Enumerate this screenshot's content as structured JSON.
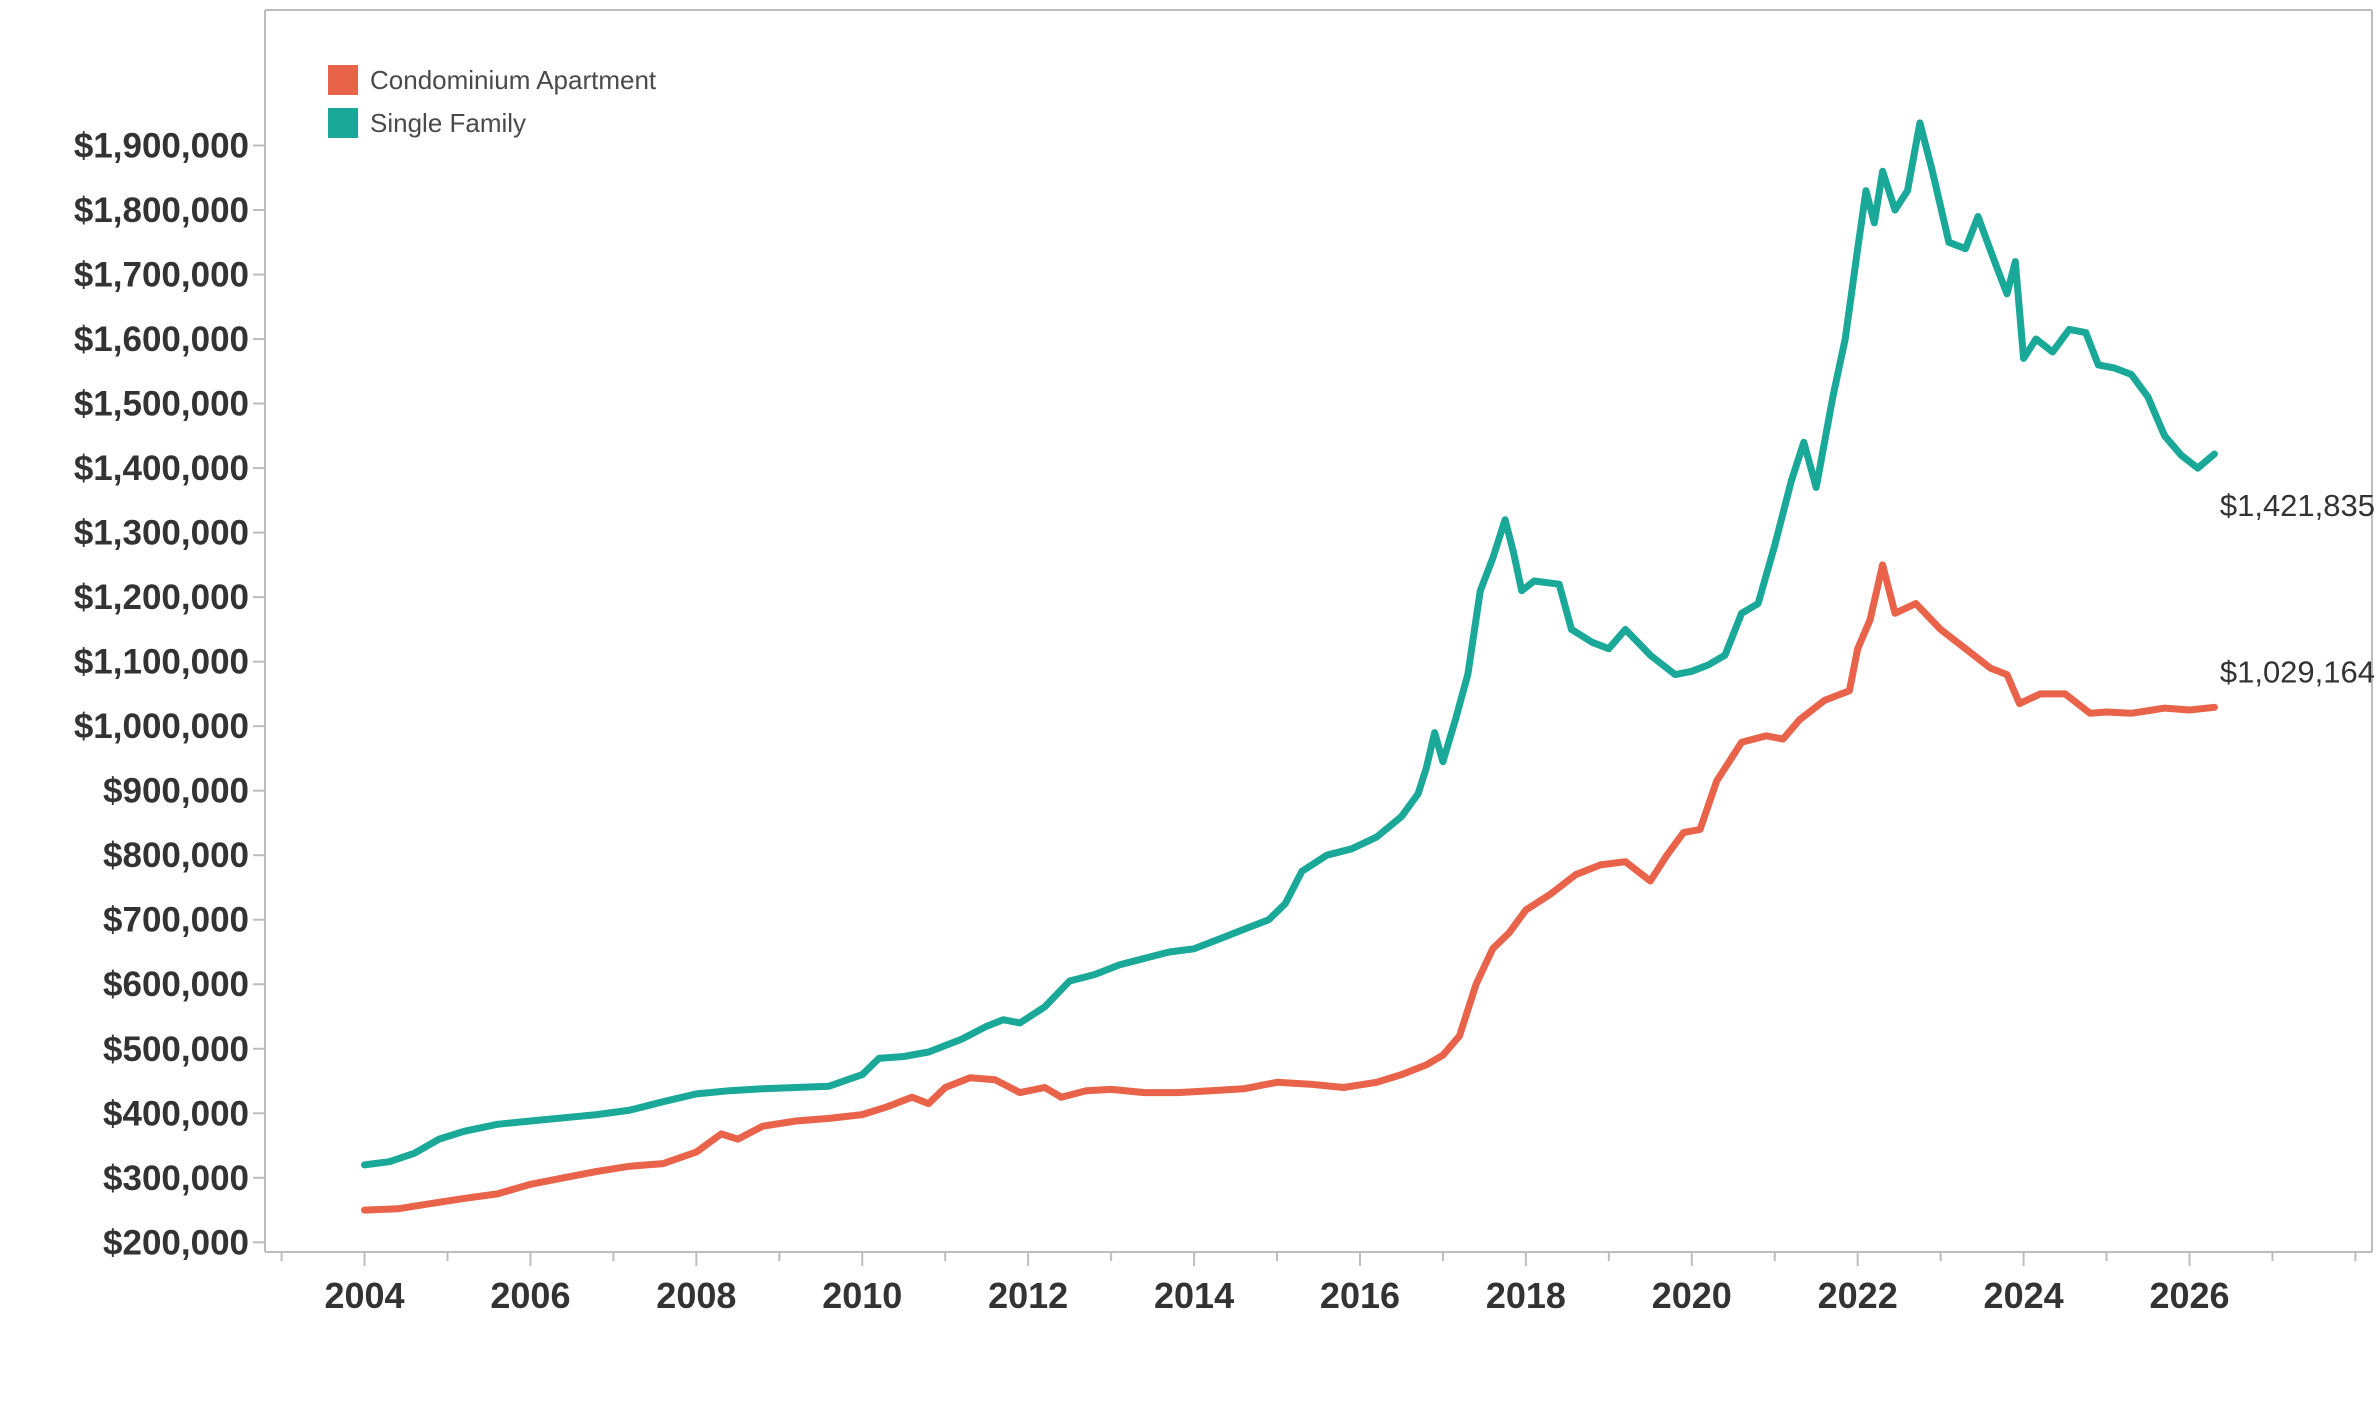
{
  "chart_data": {
    "type": "line",
    "title": "",
    "xlabel": "",
    "ylabel": "",
    "xlim": [
      2002.8,
      2028.2
    ],
    "ylim": [
      185000,
      2110000
    ],
    "x_ticks": [
      2004,
      2006,
      2008,
      2010,
      2012,
      2014,
      2016,
      2018,
      2020,
      2022,
      2024,
      2026
    ],
    "x_tick_labels": [
      "2004",
      "2006",
      "2008",
      "2010",
      "2012",
      "2014",
      "2016",
      "2018",
      "2020",
      "2022",
      "2024",
      "2026"
    ],
    "y_ticks": [
      200000,
      300000,
      400000,
      500000,
      600000,
      700000,
      800000,
      900000,
      1000000,
      1100000,
      1200000,
      1300000,
      1400000,
      1500000,
      1600000,
      1700000,
      1800000,
      1900000
    ],
    "y_tick_labels": [
      "$200,000",
      "$300,000",
      "$400,000",
      "$500,000",
      "$600,000",
      "$700,000",
      "$800,000",
      "$900,000",
      "$1,000,000",
      "$1,100,000",
      "$1,200,000",
      "$1,300,000",
      "$1,400,000",
      "$1,500,000",
      "$1,600,000",
      "$1,700,000",
      "$1,800,000",
      "$1,900,000"
    ],
    "grid": false,
    "legend_position": "top-left",
    "series": [
      {
        "name": "Condominium Apartment",
        "color": "#e8634a",
        "end_label": "$1,029,164",
        "points": [
          [
            2004.0,
            250000
          ],
          [
            2004.4,
            252000
          ],
          [
            2004.8,
            260000
          ],
          [
            2005.2,
            268000
          ],
          [
            2005.6,
            275000
          ],
          [
            2006.0,
            290000
          ],
          [
            2006.4,
            300000
          ],
          [
            2006.8,
            310000
          ],
          [
            2007.2,
            318000
          ],
          [
            2007.6,
            322000
          ],
          [
            2008.0,
            340000
          ],
          [
            2008.3,
            368000
          ],
          [
            2008.5,
            360000
          ],
          [
            2008.8,
            380000
          ],
          [
            2009.2,
            388000
          ],
          [
            2009.6,
            392000
          ],
          [
            2010.0,
            398000
          ],
          [
            2010.3,
            410000
          ],
          [
            2010.6,
            425000
          ],
          [
            2010.8,
            415000
          ],
          [
            2011.0,
            440000
          ],
          [
            2011.3,
            455000
          ],
          [
            2011.6,
            452000
          ],
          [
            2011.9,
            432000
          ],
          [
            2012.2,
            440000
          ],
          [
            2012.4,
            425000
          ],
          [
            2012.7,
            435000
          ],
          [
            2013.0,
            437000
          ],
          [
            2013.4,
            432000
          ],
          [
            2013.8,
            432000
          ],
          [
            2014.2,
            435000
          ],
          [
            2014.6,
            438000
          ],
          [
            2015.0,
            448000
          ],
          [
            2015.4,
            445000
          ],
          [
            2015.8,
            440000
          ],
          [
            2016.2,
            448000
          ],
          [
            2016.5,
            460000
          ],
          [
            2016.8,
            475000
          ],
          [
            2017.0,
            490000
          ],
          [
            2017.2,
            520000
          ],
          [
            2017.4,
            600000
          ],
          [
            2017.6,
            655000
          ],
          [
            2017.8,
            680000
          ],
          [
            2018.0,
            715000
          ],
          [
            2018.3,
            740000
          ],
          [
            2018.6,
            770000
          ],
          [
            2018.9,
            785000
          ],
          [
            2019.2,
            790000
          ],
          [
            2019.5,
            760000
          ],
          [
            2019.7,
            800000
          ],
          [
            2019.9,
            835000
          ],
          [
            2020.1,
            840000
          ],
          [
            2020.3,
            915000
          ],
          [
            2020.6,
            975000
          ],
          [
            2020.9,
            985000
          ],
          [
            2021.1,
            980000
          ],
          [
            2021.3,
            1010000
          ],
          [
            2021.6,
            1040000
          ],
          [
            2021.9,
            1055000
          ],
          [
            2022.0,
            1120000
          ],
          [
            2022.15,
            1165000
          ],
          [
            2022.3,
            1250000
          ],
          [
            2022.45,
            1175000
          ],
          [
            2022.7,
            1190000
          ],
          [
            2023.0,
            1150000
          ],
          [
            2023.3,
            1120000
          ],
          [
            2023.6,
            1090000
          ],
          [
            2023.8,
            1080000
          ],
          [
            2023.95,
            1035000
          ],
          [
            2024.2,
            1050000
          ],
          [
            2024.5,
            1050000
          ],
          [
            2024.8,
            1020000
          ],
          [
            2025.0,
            1022000
          ],
          [
            2025.3,
            1020000
          ],
          [
            2025.7,
            1028000
          ],
          [
            2026.0,
            1025000
          ],
          [
            2026.3,
            1029164
          ]
        ]
      },
      {
        "name": "Single Family",
        "color": "#1aa898",
        "end_label": "$1,421,835",
        "points": [
          [
            2004.0,
            320000
          ],
          [
            2004.3,
            325000
          ],
          [
            2004.6,
            338000
          ],
          [
            2004.9,
            360000
          ],
          [
            2005.2,
            372000
          ],
          [
            2005.6,
            383000
          ],
          [
            2006.0,
            388000
          ],
          [
            2006.4,
            393000
          ],
          [
            2006.8,
            398000
          ],
          [
            2007.2,
            405000
          ],
          [
            2007.6,
            418000
          ],
          [
            2008.0,
            430000
          ],
          [
            2008.4,
            435000
          ],
          [
            2008.8,
            438000
          ],
          [
            2009.2,
            440000
          ],
          [
            2009.6,
            442000
          ],
          [
            2010.0,
            460000
          ],
          [
            2010.2,
            485000
          ],
          [
            2010.5,
            488000
          ],
          [
            2010.8,
            495000
          ],
          [
            2011.2,
            515000
          ],
          [
            2011.5,
            535000
          ],
          [
            2011.7,
            545000
          ],
          [
            2011.9,
            540000
          ],
          [
            2012.2,
            565000
          ],
          [
            2012.5,
            605000
          ],
          [
            2012.8,
            615000
          ],
          [
            2013.1,
            630000
          ],
          [
            2013.4,
            640000
          ],
          [
            2013.7,
            650000
          ],
          [
            2014.0,
            655000
          ],
          [
            2014.3,
            670000
          ],
          [
            2014.6,
            685000
          ],
          [
            2014.9,
            700000
          ],
          [
            2015.1,
            725000
          ],
          [
            2015.3,
            775000
          ],
          [
            2015.6,
            800000
          ],
          [
            2015.9,
            810000
          ],
          [
            2016.2,
            828000
          ],
          [
            2016.5,
            860000
          ],
          [
            2016.7,
            895000
          ],
          [
            2016.8,
            935000
          ],
          [
            2016.9,
            990000
          ],
          [
            2017.0,
            945000
          ],
          [
            2017.15,
            1010000
          ],
          [
            2017.3,
            1080000
          ],
          [
            2017.45,
            1210000
          ],
          [
            2017.6,
            1260000
          ],
          [
            2017.75,
            1320000
          ],
          [
            2017.85,
            1270000
          ],
          [
            2017.95,
            1210000
          ],
          [
            2018.1,
            1225000
          ],
          [
            2018.4,
            1220000
          ],
          [
            2018.55,
            1150000
          ],
          [
            2018.8,
            1130000
          ],
          [
            2019.0,
            1120000
          ],
          [
            2019.2,
            1150000
          ],
          [
            2019.5,
            1110000
          ],
          [
            2019.8,
            1080000
          ],
          [
            2020.0,
            1085000
          ],
          [
            2020.2,
            1095000
          ],
          [
            2020.4,
            1110000
          ],
          [
            2020.6,
            1175000
          ],
          [
            2020.8,
            1190000
          ],
          [
            2021.0,
            1280000
          ],
          [
            2021.2,
            1380000
          ],
          [
            2021.35,
            1440000
          ],
          [
            2021.5,
            1370000
          ],
          [
            2021.7,
            1510000
          ],
          [
            2021.85,
            1600000
          ],
          [
            2022.0,
            1740000
          ],
          [
            2022.1,
            1830000
          ],
          [
            2022.2,
            1780000
          ],
          [
            2022.3,
            1860000
          ],
          [
            2022.45,
            1800000
          ],
          [
            2022.6,
            1830000
          ],
          [
            2022.75,
            1935000
          ],
          [
            2022.9,
            1860000
          ],
          [
            2023.1,
            1750000
          ],
          [
            2023.3,
            1740000
          ],
          [
            2023.45,
            1790000
          ],
          [
            2023.65,
            1720000
          ],
          [
            2023.8,
            1670000
          ],
          [
            2023.9,
            1720000
          ],
          [
            2024.0,
            1570000
          ],
          [
            2024.15,
            1600000
          ],
          [
            2024.35,
            1580000
          ],
          [
            2024.55,
            1615000
          ],
          [
            2024.75,
            1610000
          ],
          [
            2024.9,
            1560000
          ],
          [
            2025.1,
            1555000
          ],
          [
            2025.3,
            1545000
          ],
          [
            2025.5,
            1510000
          ],
          [
            2025.7,
            1450000
          ],
          [
            2025.9,
            1420000
          ],
          [
            2026.1,
            1400000
          ],
          [
            2026.3,
            1421835
          ]
        ]
      }
    ]
  }
}
